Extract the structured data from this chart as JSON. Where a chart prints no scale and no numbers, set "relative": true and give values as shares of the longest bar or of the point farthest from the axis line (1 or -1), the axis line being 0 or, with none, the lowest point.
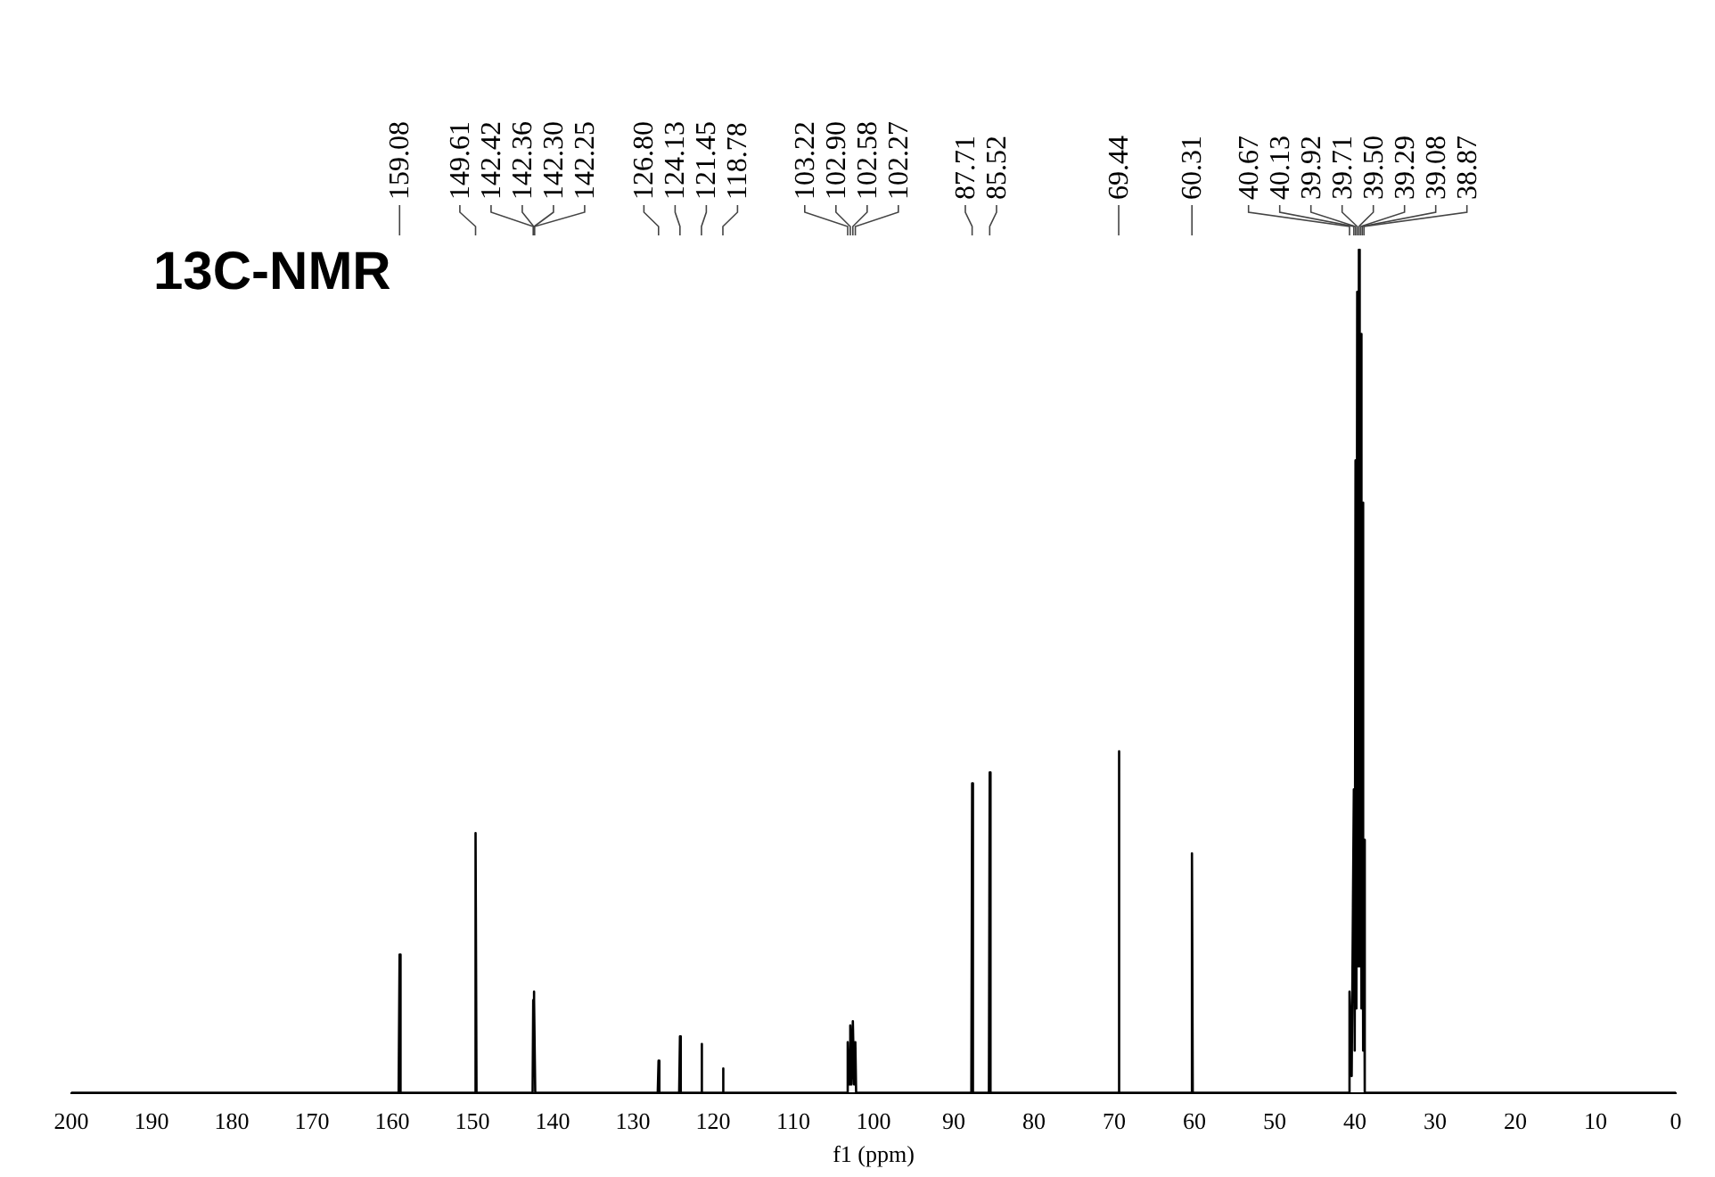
{
  "chart_data": {
    "type": "line",
    "title": "13C-NMR",
    "xlabel": "f1 (ppm)",
    "relative": true,
    "legend": false,
    "grid": false,
    "marker": "none",
    "line_style": "solid",
    "xlim": [
      200,
      0
    ],
    "xticks": [
      200,
      190,
      180,
      170,
      160,
      150,
      140,
      130,
      120,
      110,
      100,
      90,
      80,
      70,
      60,
      50,
      40,
      30,
      20,
      10,
      0
    ],
    "series": [
      {
        "color": "#000000",
        "x": [
          200,
          159.2,
          159.08,
          158.96,
          149.73,
          149.61,
          149.49,
          142.5,
          142.42,
          142.39,
          142.36,
          142.33,
          142.3,
          142.27,
          142.25,
          142.17,
          126.9,
          126.8,
          126.7,
          124.23,
          124.13,
          124.03,
          121.55,
          121.45,
          121.35,
          118.88,
          118.78,
          118.68,
          103.32,
          103.22,
          103.06,
          102.9,
          102.74,
          102.58,
          102.42,
          102.27,
          102.17,
          87.81,
          87.71,
          87.61,
          85.62,
          85.52,
          85.42,
          69.54,
          69.44,
          69.34,
          60.41,
          60.31,
          60.21,
          40.77,
          40.67,
          40.4,
          40.13,
          40.02,
          39.92,
          39.81,
          39.71,
          39.6,
          39.5,
          39.4,
          39.29,
          39.18,
          39.08,
          38.97,
          38.87,
          38.77,
          0
        ],
        "values": [
          0,
          0,
          0.164,
          0,
          0,
          0.308,
          0,
          0,
          0.11,
          0.02,
          0.12,
          0.02,
          0.12,
          0.02,
          0.11,
          0,
          0,
          0.038,
          0,
          0,
          0.067,
          0,
          0,
          0.058,
          0,
          0,
          0.029,
          0,
          0,
          0.06,
          0.01,
          0.08,
          0.01,
          0.085,
          0.01,
          0.06,
          0,
          0,
          0.367,
          0,
          0,
          0.38,
          0,
          0,
          0.405,
          0,
          0,
          0.284,
          0,
          0,
          0.12,
          0.02,
          0.36,
          0.05,
          0.75,
          0.1,
          0.95,
          0.15,
          1,
          0.15,
          0.9,
          0.1,
          0.7,
          0.05,
          0.3,
          0,
          0
        ]
      }
    ],
    "annotations": [
      "159.08",
      "149.61",
      "142.42",
      "142.36",
      "142.30",
      "142.25",
      "126.80",
      "124.13",
      "121.45",
      "118.78",
      "103.22",
      "102.90",
      "102.58",
      "102.27",
      "87.71",
      "85.52",
      "69.44",
      "60.31",
      "40.67",
      "40.13",
      "39.92",
      "39.71",
      "39.50",
      "39.29",
      "39.08",
      "38.87"
    ]
  }
}
